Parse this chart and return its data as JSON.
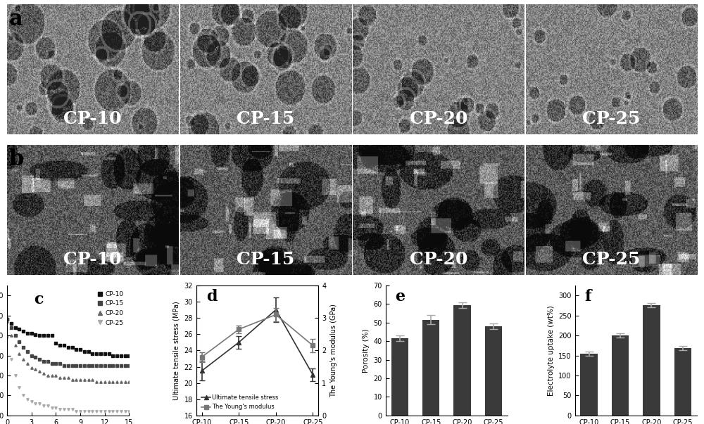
{
  "sem_labels_a": [
    "CP-10",
    "CP-15",
    "CP-20",
    "CP-25"
  ],
  "sem_labels_b": [
    "CP-10",
    "CP-15",
    "CP-20",
    "CP-25"
  ],
  "contact_angle_categories": [
    "CP-10",
    "CP-15",
    "CP-20",
    "CP-25"
  ],
  "contact_time": [
    0,
    0.5,
    1,
    1.5,
    2,
    2.5,
    3,
    3.5,
    4,
    4.5,
    5,
    5.5,
    6,
    6.5,
    7,
    7.5,
    8,
    8.5,
    9,
    9.5,
    10,
    10.5,
    11,
    11.5,
    12,
    12.5,
    13,
    13.5,
    14,
    14.5,
    15
  ],
  "ca_cp10": [
    108,
    106,
    104,
    103,
    102,
    101,
    101,
    100.5,
    100,
    100,
    100,
    100,
    96,
    95,
    95,
    94,
    94,
    93,
    93,
    92,
    92,
    91,
    91,
    91,
    91,
    91,
    90,
    90,
    90,
    90,
    90
  ],
  "ca_cp15": [
    108,
    104,
    100,
    97,
    94,
    92,
    90,
    89,
    88,
    87,
    87,
    86,
    86,
    86,
    85,
    85,
    85,
    85,
    85,
    85,
    85,
    85,
    85,
    85,
    85,
    85,
    85,
    85,
    85,
    85,
    85
  ],
  "ca_cp20": [
    107,
    100,
    95,
    91,
    88,
    86,
    84,
    83,
    82,
    81,
    80,
    80,
    80,
    79,
    79,
    79,
    78,
    78,
    78,
    78,
    78,
    78,
    77,
    77,
    77,
    77,
    77,
    77,
    77,
    77,
    77
  ],
  "ca_cp25": [
    99,
    88,
    80,
    74,
    70,
    68,
    67,
    66,
    66,
    65,
    65,
    64,
    64,
    63,
    63,
    63,
    63,
    62,
    62,
    62,
    62,
    62,
    62,
    62,
    62,
    62,
    62,
    62,
    62,
    62,
    62
  ],
  "tensile_categories": [
    "CP-10",
    "CP-15",
    "CP-20",
    "CP-25"
  ],
  "tensile_stress": [
    21.5,
    25.0,
    29.0,
    21.0
  ],
  "tensile_stress_err": [
    1.2,
    0.8,
    1.5,
    0.8
  ],
  "youngs_modulus": [
    1.8,
    2.65,
    3.1,
    2.15
  ],
  "youngs_modulus_err": [
    0.15,
    0.12,
    0.2,
    0.2
  ],
  "porosity_categories": [
    "CP-10",
    "CP-15",
    "CP-20",
    "CP-25"
  ],
  "porosity_values": [
    41.5,
    51.5,
    59.5,
    48.0
  ],
  "porosity_err": [
    1.5,
    2.5,
    1.5,
    1.5
  ],
  "electrolyte_categories": [
    "CP-10",
    "CP-15",
    "CP-20",
    "CP-25"
  ],
  "electrolyte_values": [
    155,
    200,
    275,
    168
  ],
  "electrolyte_err": [
    5,
    6,
    5,
    5
  ],
  "bar_color": "#3a3a3a",
  "bg_color": "#ffffff",
  "sem_text_color": "white",
  "sem_font_size": 18
}
